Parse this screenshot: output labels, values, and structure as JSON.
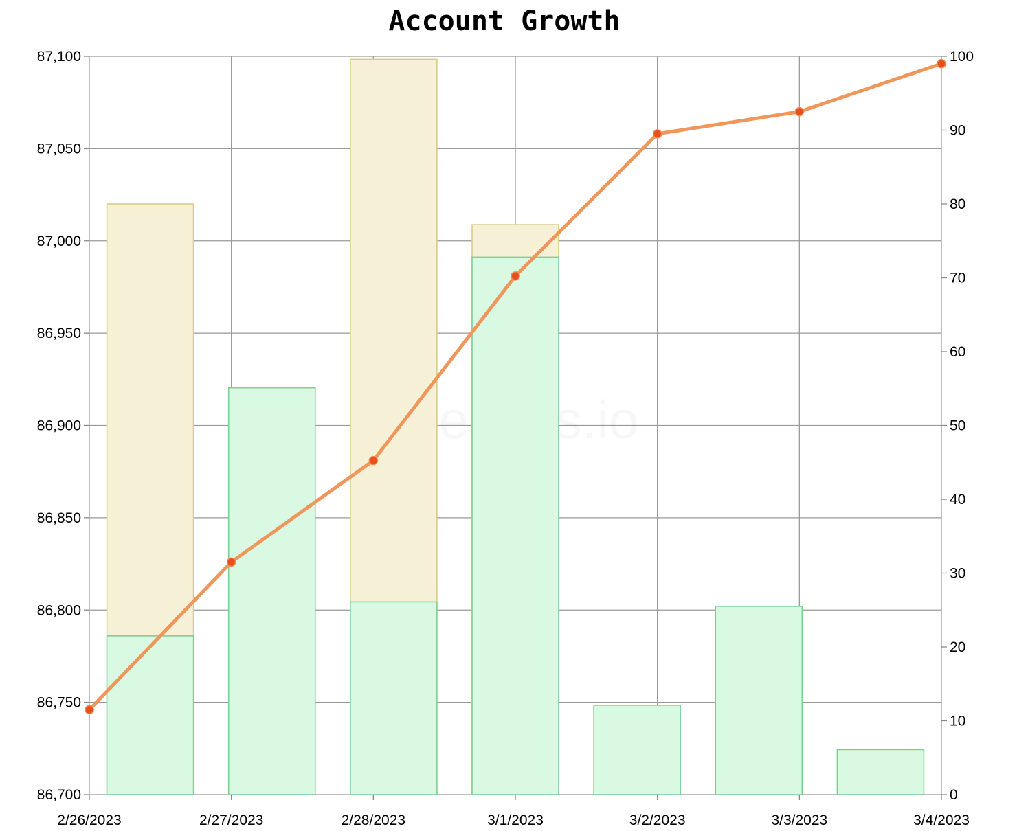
{
  "chart_data": {
    "type": "bar",
    "title": "Account Growth",
    "watermark": "hivestats.io",
    "categories": [
      "2/26/2023",
      "2/27/2023",
      "2/28/2023",
      "3/1/2023",
      "3/2/2023",
      "3/3/2023",
      "3/4/2023"
    ],
    "left_axis": {
      "ylim": [
        86700,
        87100
      ],
      "ticks": [
        "86,700",
        "86,750",
        "86,800",
        "86,850",
        "86,900",
        "86,950",
        "87,000",
        "87,050",
        "87,100"
      ]
    },
    "right_axis": {
      "ylim": [
        0,
        100
      ],
      "ticks": [
        "0",
        "10",
        "20",
        "30",
        "40",
        "50",
        "60",
        "70",
        "80",
        "90",
        "100"
      ]
    },
    "grid": true,
    "series": [
      {
        "type": "bar",
        "axis": "right",
        "color": "#f5f0d6",
        "stroke": "#d9cd85",
        "values": [
          80,
          null,
          99.6,
          77.2,
          null,
          null,
          null
        ]
      },
      {
        "type": "bar",
        "axis": "right",
        "color": "#d9f9e3",
        "stroke": "#7fcf95",
        "values": [
          21.5,
          55.1,
          26.1,
          72.8,
          12.1,
          25.5,
          6.1
        ]
      },
      {
        "type": "line",
        "axis": "left",
        "color": "#f0965a",
        "marker_color": "#e94e1d",
        "values": [
          86746,
          86826,
          86881,
          86981,
          87058,
          87070,
          87096
        ]
      }
    ]
  }
}
